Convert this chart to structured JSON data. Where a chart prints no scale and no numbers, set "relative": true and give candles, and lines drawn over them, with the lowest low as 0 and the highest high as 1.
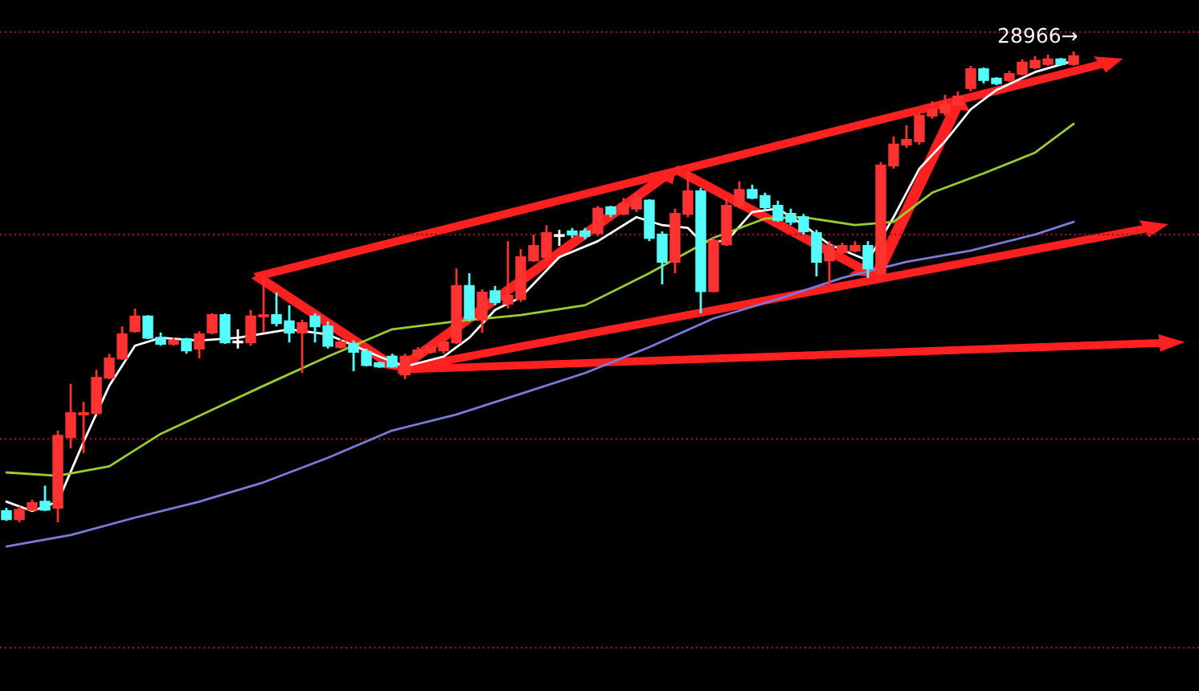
{
  "chart_data": {
    "type": "candlestick",
    "relative": true,
    "categories": [
      null,
      null,
      null,
      null,
      null,
      null,
      null,
      null,
      null,
      null,
      null,
      null,
      null,
      null,
      null,
      null,
      null,
      null,
      null,
      null,
      null,
      null,
      null,
      null,
      null,
      null,
      null,
      null,
      null,
      null,
      null,
      null,
      null,
      null,
      null,
      null,
      null,
      null,
      null,
      null,
      null,
      null,
      null,
      null,
      null,
      null,
      null,
      null,
      null,
      null,
      null,
      null,
      null,
      null,
      null,
      null,
      null,
      null,
      null,
      null,
      null,
      null,
      null,
      null,
      null,
      null,
      null,
      null,
      null,
      null,
      null,
      null,
      null,
      null,
      null,
      null,
      null,
      null,
      null,
      null,
      null,
      null,
      null,
      null
    ],
    "colors": [
      "#54fcfc",
      "#ff3232",
      "#ff3232",
      "#54fcfc",
      "#ff3232",
      "#ff3232",
      "#ff3232",
      "#ff3232",
      "#ff3232",
      "#ff3232",
      "#ff3232",
      "#54fcfc",
      "#54fcfc",
      "#ff3232",
      "#54fcfc",
      "#ff3232",
      "#ff3232",
      "#54fcfc",
      "#ffffff",
      "#ff3232",
      "#ff3232",
      "#54fcfc",
      "#54fcfc",
      "#ff3232",
      "#54fcfc",
      "#54fcfc",
      "#ff3232",
      "#54fcfc",
      "#54fcfc",
      "#54fcfc",
      "#54fcfc",
      "#ff3232",
      "#ff3232",
      "#ff3232",
      "#ff3232",
      "#ff3232",
      "#54fcfc",
      "#ff3232",
      "#54fcfc",
      "#ff3232",
      "#ff3232",
      "#ff3232",
      "#ff3232",
      "#ffffff",
      "#54fcfc",
      "#54fcfc",
      "#ff3232",
      "#54fcfc",
      "#ff3232",
      "#ff3232",
      "#54fcfc",
      "#54fcfc",
      "#ff3232",
      "#ff3232",
      "#54fcfc",
      "#ff3232",
      "#ff3232",
      "#ff3232",
      "#54fcfc",
      "#54fcfc",
      "#54fcfc",
      "#54fcfc",
      "#54fcfc",
      "#54fcfc",
      "#ff3232",
      "#ff3232",
      "#ff3232",
      "#54fcfc",
      "#ff3232",
      "#ff3232",
      "#ff3232",
      "#ff3232",
      "#ff3232",
      "#ff3232",
      "#ff3232",
      "#ff3232",
      "#54fcfc",
      "#54fcfc",
      "#ff3232",
      "#ff3232",
      "#ff3232",
      "#ff3232",
      "#54fcfc",
      "#ff3232"
    ],
    "ohlc": [
      [
        0.024,
        0.031,
        0.003,
        0.007
      ],
      [
        0.007,
        0.034,
        0,
        0.027
      ],
      [
        0.027,
        0.048,
        0.024,
        0.041
      ],
      [
        0.044,
        0.078,
        0.024,
        0.027
      ],
      [
        0.031,
        0.195,
        0,
        0.184
      ],
      [
        0.181,
        0.294,
        0.157,
        0.232
      ],
      [
        0.229,
        0.256,
        0.147,
        0.232
      ],
      [
        0.232,
        0.324,
        0.229,
        0.307
      ],
      [
        0.307,
        0.358,
        0.304,
        0.348
      ],
      [
        0.348,
        0.416,
        0.345,
        0.399
      ],
      [
        0.406,
        0.454,
        0.403,
        0.437
      ],
      [
        0.437,
        0.44,
        0.389,
        0.392
      ],
      [
        0.392,
        0.403,
        0.375,
        0.379
      ],
      [
        0.379,
        0.392,
        0.375,
        0.386
      ],
      [
        0.389,
        0.392,
        0.358,
        0.365
      ],
      [
        0.369,
        0.406,
        0.348,
        0.399
      ],
      [
        0.403,
        0.444,
        0.399,
        0.44
      ],
      [
        0.44,
        0.444,
        0.379,
        0.382
      ],
      [
        0.382,
        0.41,
        0.369,
        0.382
      ],
      [
        0.382,
        0.451,
        0.375,
        0.437
      ],
      [
        0.437,
        0.522,
        0.403,
        0.44
      ],
      [
        0.44,
        0.488,
        0.416,
        0.423
      ],
      [
        0.427,
        0.461,
        0.382,
        0.403
      ],
      [
        0.403,
        0.43,
        0.317,
        0.423
      ],
      [
        0.437,
        0.444,
        0.382,
        0.416
      ],
      [
        0.416,
        0.427,
        0.369,
        0.375
      ],
      [
        0.372,
        0.389,
        0.369,
        0.382
      ],
      [
        0.379,
        0.386,
        0.321,
        0.362
      ],
      [
        0.362,
        0.369,
        0.331,
        0.334
      ],
      [
        0.338,
        0.341,
        0.328,
        0.331
      ],
      [
        0.352,
        0.358,
        0.328,
        0.331
      ],
      [
        0.314,
        0.358,
        0.304,
        0.352
      ],
      [
        0.352,
        0.372,
        0.348,
        0.365
      ],
      [
        0.362,
        0.379,
        0.358,
        0.372
      ],
      [
        0.365,
        0.386,
        0.358,
        0.382
      ],
      [
        0.382,
        0.539,
        0.379,
        0.502
      ],
      [
        0.502,
        0.529,
        0.427,
        0.433
      ],
      [
        0.43,
        0.495,
        0.403,
        0.488
      ],
      [
        0.491,
        0.502,
        0.461,
        0.468
      ],
      [
        0.464,
        0.597,
        0.454,
        0.481
      ],
      [
        0.474,
        0.58,
        0.468,
        0.563
      ],
      [
        0.556,
        0.611,
        0.553,
        0.587
      ],
      [
        0.563,
        0.631,
        0.556,
        0.614
      ],
      [
        0.608,
        0.621,
        0.587,
        0.608
      ],
      [
        0.618,
        0.625,
        0.604,
        0.611
      ],
      [
        0.618,
        0.625,
        0.601,
        0.608
      ],
      [
        0.614,
        0.672,
        0.608,
        0.666
      ],
      [
        0.669,
        0.672,
        0.648,
        0.655
      ],
      [
        0.655,
        0.689,
        0.652,
        0.676
      ],
      [
        0.666,
        0.7,
        0.659,
        0.689
      ],
      [
        0.683,
        0.686,
        0.597,
        0.604
      ],
      [
        0.611,
        0.618,
        0.505,
        0.553
      ],
      [
        0.553,
        0.666,
        0.529,
        0.655
      ],
      [
        0.655,
        0.744,
        0.648,
        0.703
      ],
      [
        0.703,
        0.71,
        0.444,
        0.491
      ],
      [
        0.491,
        0.604,
        0.488,
        0.597
      ],
      [
        0.59,
        0.693,
        0.587,
        0.672
      ],
      [
        0.672,
        0.724,
        0.666,
        0.706
      ],
      [
        0.706,
        0.717,
        0.686,
        0.689
      ],
      [
        0.693,
        0.7,
        0.662,
        0.669
      ],
      [
        0.672,
        0.683,
        0.638,
        0.642
      ],
      [
        0.655,
        0.666,
        0.631,
        0.638
      ],
      [
        0.648,
        0.655,
        0.611,
        0.618
      ],
      [
        0.614,
        0.621,
        0.522,
        0.553
      ],
      [
        0.556,
        0.597,
        0.505,
        0.587
      ],
      [
        0.573,
        0.594,
        0.57,
        0.587
      ],
      [
        0.577,
        0.597,
        0.573,
        0.587
      ],
      [
        0.587,
        0.597,
        0.519,
        0.539
      ],
      [
        0.529,
        0.765,
        0.522,
        0.758
      ],
      [
        0.758,
        0.819,
        0.751,
        0.802
      ],
      [
        0.802,
        0.843,
        0.795,
        0.812
      ],
      [
        0.809,
        0.87,
        0.802,
        0.863
      ],
      [
        0.863,
        0.894,
        0.857,
        0.877
      ],
      [
        0.87,
        0.908,
        0.863,
        0.887
      ],
      [
        0.887,
        0.915,
        0.884,
        0.904
      ],
      [
        0.922,
        0.969,
        0.915,
        0.962
      ],
      [
        0.962,
        0.966,
        0.932,
        0.939
      ],
      [
        0.942,
        0.945,
        0.928,
        0.932
      ],
      [
        0.939,
        0.959,
        0.935,
        0.952
      ],
      [
        0.952,
        0.983,
        0.949,
        0.976
      ],
      [
        0.966,
        0.99,
        0.962,
        0.98
      ],
      [
        0.973,
        0.993,
        0.969,
        0.983
      ],
      [
        0.983,
        0.986,
        0.969,
        0.973
      ],
      [
        0.973,
        1,
        0.969,
        0.99
      ]
    ],
    "ref_lines": [
      {
        "axis": "y",
        "value": 1.041,
        "color": "#8b1a1a",
        "line_style": "dotted"
      },
      {
        "axis": "y",
        "value": 0.611,
        "color": "#8b1a1a",
        "line_style": "dotted"
      },
      {
        "axis": "y",
        "value": 0.177,
        "color": "#8b1a1a",
        "line_style": "dotted"
      },
      {
        "axis": "y",
        "value": -0.266,
        "color": "#8b1a1a",
        "line_style": "dotted"
      }
    ],
    "annotations": [
      {
        "text": "28966→",
        "y": 1
      }
    ],
    "series": [
      {
        "type": "line",
        "color": "#ffffff",
        "values": [
          0.044,
          null,
          0.024,
          null,
          0.044,
          null,
          0.171,
          null,
          0.29,
          null,
          0.375,
          null,
          0.392,
          null,
          null,
          0.386,
          null,
          null,
          0.392,
          null,
          null,
          null,
          0.41,
          null,
          null,
          0.399,
          null,
          null,
          null,
          0.352,
          null,
          0.331,
          null,
          null,
          0.352,
          null,
          0.392,
          null,
          0.451,
          null,
          0.478,
          null,
          null,
          0.563,
          null,
          null,
          0.597,
          null,
          null,
          0.648,
          null,
          0.631,
          null,
          0.625,
          0.597,
          null,
          0.597,
          null,
          0.659,
          null,
          0.666,
          null,
          0.631,
          null,
          0.59,
          null,
          null,
          0.556,
          null,
          0.648,
          null,
          0.751,
          null,
          0.809,
          null,
          0.877,
          null,
          0.918,
          null,
          null,
          0.956,
          null,
          null,
          0.98
        ]
      },
      {
        "type": "line",
        "color": "#9acd32",
        "values": [
          0.106,
          null,
          null,
          null,
          0.099,
          null,
          null,
          null,
          0.119,
          null,
          null,
          null,
          0.188,
          null,
          null,
          null,
          0.239,
          null,
          null,
          null,
          0.29,
          null,
          null,
          null,
          null,
          0.352,
          null,
          null,
          null,
          null,
          0.41,
          null,
          null,
          null,
          null,
          0.427,
          null,
          null,
          null,
          null,
          0.44,
          null,
          null,
          null,
          null,
          0.461,
          null,
          null,
          null,
          null,
          0.529,
          null,
          null,
          null,
          null,
          0.604,
          null,
          null,
          null,
          0.645,
          null,
          null,
          0.648,
          null,
          null,
          null,
          0.631,
          null,
          null,
          0.638,
          null,
          null,
          0.7,
          null,
          null,
          null,
          0.741,
          null,
          null,
          null,
          0.785,
          null,
          null,
          0.846
        ]
      },
      {
        "type": "line",
        "color": "#7b7bd9",
        "values": [
          -0.051,
          null,
          null,
          null,
          null,
          -0.027,
          null,
          null,
          null,
          null,
          0.01,
          null,
          null,
          null,
          null,
          0.044,
          null,
          null,
          null,
          null,
          0.085,
          null,
          null,
          null,
          null,
          0.137,
          null,
          null,
          null,
          null,
          0.195,
          null,
          null,
          null,
          null,
          0.229,
          null,
          null,
          null,
          null,
          0.273,
          null,
          null,
          null,
          null,
          0.317,
          null,
          null,
          null,
          null,
          0.372,
          null,
          null,
          null,
          null,
          0.433,
          null,
          null,
          null,
          null,
          0.474,
          null,
          null,
          null,
          null,
          0.519,
          null,
          null,
          null,
          null,
          0.553,
          null,
          null,
          null,
          null,
          0.577,
          null,
          null,
          null,
          null,
          0.611,
          null,
          null,
          0.638
        ]
      }
    ]
  }
}
